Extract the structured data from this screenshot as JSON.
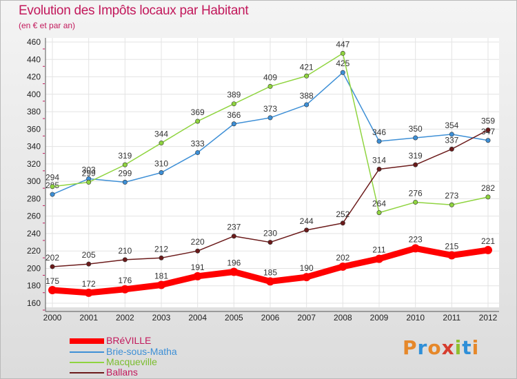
{
  "header": {
    "title": "Evolution des Impôts locaux par Habitant",
    "subtitle": "(en € et par an)"
  },
  "logo": {
    "text": "Proxiti"
  },
  "colors": {
    "title": "#c2185b",
    "label_text": "#333333",
    "axis_tick_text": "#222222"
  },
  "chart_data": {
    "type": "line",
    "title": "Evolution des Impôts locaux par Habitant",
    "subtitle": "(en € et par an)",
    "xlabel": "",
    "ylabel": "",
    "x": [
      "2000",
      "2001",
      "2002",
      "2003",
      "2004",
      "2005",
      "2006",
      "2007",
      "2008",
      "2009",
      "2010",
      "2011",
      "2012"
    ],
    "ylim": [
      160,
      460
    ],
    "ytick_step": 20,
    "grid": true,
    "legend_position": "bottom-left",
    "series": [
      {
        "name": "BRéVILLE",
        "color": "#ff0000",
        "emphasis": true,
        "values": [
          175,
          172,
          176,
          181,
          191,
          196,
          185,
          190,
          202,
          211,
          223,
          215,
          221
        ]
      },
      {
        "name": "Brie-sous-Matha",
        "color": "#3d8fd6",
        "values": [
          285,
          303,
          299,
          310,
          333,
          366,
          373,
          388,
          425,
          346,
          350,
          354,
          347
        ]
      },
      {
        "name": "Macqueville",
        "color": "#8fd43f",
        "values": [
          294,
          299,
          319,
          344,
          369,
          389,
          409,
          421,
          447,
          264,
          276,
          273,
          282
        ]
      },
      {
        "name": "Ballans",
        "color": "#6b1a1a",
        "values": [
          202,
          205,
          210,
          212,
          220,
          237,
          230,
          244,
          252,
          314,
          319,
          337,
          359
        ]
      }
    ]
  }
}
